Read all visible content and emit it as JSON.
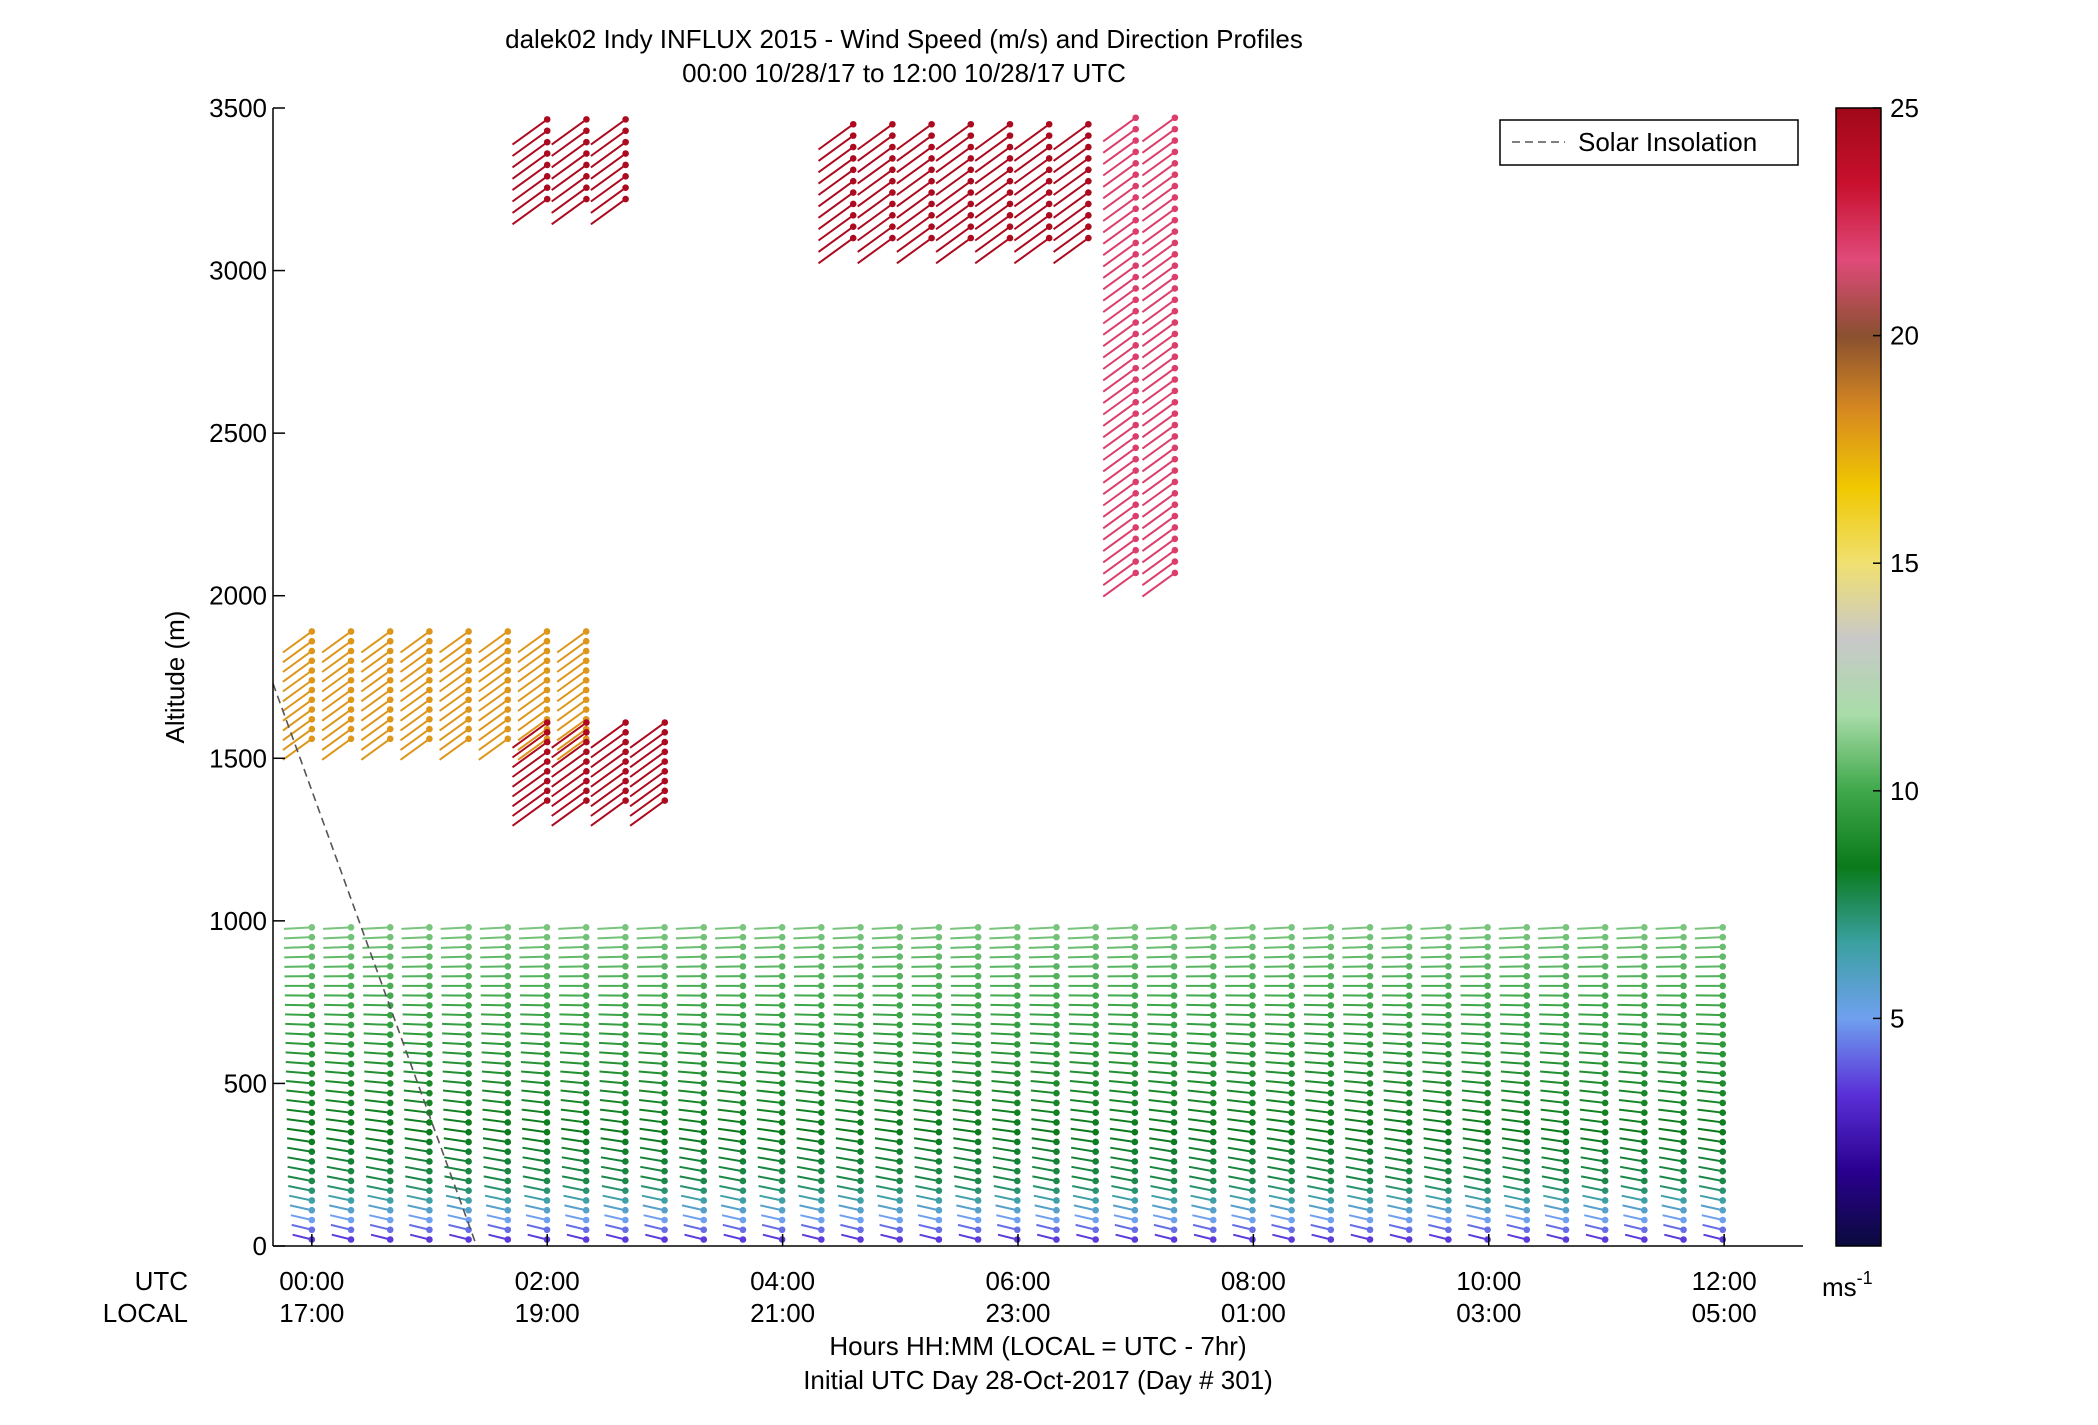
{
  "chart_data": {
    "type": "scatter",
    "title": "dalek02 Indy INFLUX 2015 - Wind Speed (m/s) and Direction Profiles",
    "subtitle": "00:00 10/28/17 to 12:00 10/28/17  UTC",
    "ylabel": "Altitude (m)",
    "xlabel": "Hours HH:MM  (LOCAL = UTC - 7hr)",
    "xlabel2": "Initial UTC Day 28-Oct-2017 (Day # 301)",
    "row_label_utc": "UTC",
    "row_label_local": "LOCAL",
    "xlim": [
      -0.33,
      12.67
    ],
    "ylim": [
      0,
      3500
    ],
    "yticks": [
      0,
      500,
      1000,
      1500,
      2000,
      2500,
      3000,
      3500
    ],
    "xticks_utc": [
      "00:00",
      "02:00",
      "04:00",
      "06:00",
      "08:00",
      "10:00",
      "12:00"
    ],
    "xticks_local": [
      "17:00",
      "19:00",
      "21:00",
      "23:00",
      "01:00",
      "03:00",
      "05:00"
    ],
    "legend": {
      "label": "Solar Insolation",
      "placement": "top-right"
    },
    "colorbar": {
      "label": "ms",
      "label_exp": "-1",
      "range": [
        0,
        25
      ],
      "ticks": [
        "5",
        "10",
        "15",
        "20",
        "25"
      ],
      "stops": [
        "#0a0a3c",
        "#2a0090",
        "#5a30d8",
        "#6fa0ef",
        "#3aa0a0",
        "#0a7a1a",
        "#3fa84a",
        "#a8dca8",
        "#c8c8c8",
        "#f0e070",
        "#f0c800",
        "#d88a20",
        "#8a5030",
        "#e04a7a",
        "#c8102e",
        "#a00818"
      ]
    },
    "solar_insolation_line": {
      "x": [
        -0.33,
        -0.05,
        0.8,
        1.4
      ],
      "y": [
        1730,
        1450,
        600,
        0
      ]
    },
    "barb_profiles": [
      {
        "x_start": 0.0,
        "x_end": 12.0,
        "step": 0.333,
        "alt_min": 20,
        "alt_max": 1000,
        "alt_step": 30,
        "speed_low": 3,
        "speed_high": 11
      },
      {
        "x_start": 0.0,
        "x_end": 2.4,
        "step": 0.333,
        "alt_min": 1560,
        "alt_max": 1900,
        "alt_step": 30,
        "speed": 18
      },
      {
        "x_start": 2.0,
        "x_end": 3.1,
        "step": 0.333,
        "alt_min": 1370,
        "alt_max": 1620,
        "alt_step": 30,
        "speed": 24.5
      },
      {
        "x_start": 2.0,
        "x_end": 2.8,
        "step": 0.333,
        "alt_min": 3220,
        "alt_max": 3480,
        "alt_step": 35,
        "speed": 24.5
      },
      {
        "x_start": 4.6,
        "x_end": 6.6,
        "step": 0.333,
        "alt_min": 3100,
        "alt_max": 3480,
        "alt_step": 35,
        "speed": 24.5
      },
      {
        "x_start": 7.0,
        "x_end": 7.4,
        "step": 0.333,
        "alt_min": 2070,
        "alt_max": 3480,
        "alt_step": 35,
        "speed": 22
      }
    ]
  }
}
